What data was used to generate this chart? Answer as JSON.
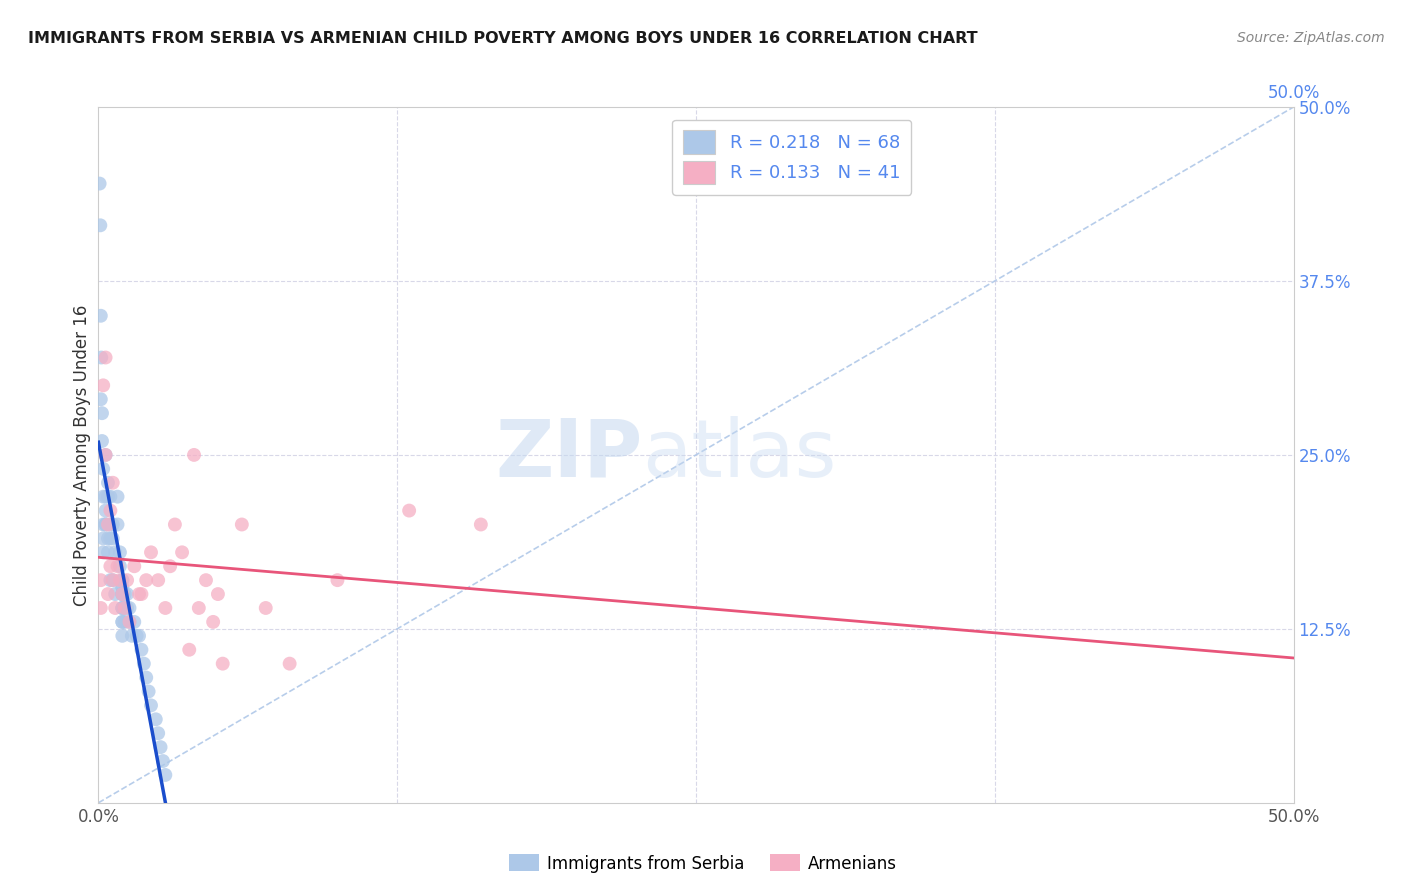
{
  "title": "IMMIGRANTS FROM SERBIA VS ARMENIAN CHILD POVERTY AMONG BOYS UNDER 16 CORRELATION CHART",
  "source": "Source: ZipAtlas.com",
  "ylabel": "Child Poverty Among Boys Under 16",
  "xlim": [
    0,
    0.5
  ],
  "ylim": [
    0,
    0.5
  ],
  "serbia_r": 0.218,
  "serbia_n": 68,
  "armenian_r": 0.133,
  "armenian_n": 41,
  "serbia_color": "#adc8e8",
  "armenian_color": "#f5afc4",
  "serbia_line_color": "#1a4dcc",
  "armenian_line_color": "#e8557a",
  "diagonal_color": "#b0c8e8",
  "tick_label_color": "#5588ee",
  "grid_color": "#d8d8e8",
  "serbia_x": [
    0.0005,
    0.0008,
    0.001,
    0.001,
    0.0012,
    0.0015,
    0.0015,
    0.002,
    0.002,
    0.002,
    0.002,
    0.002,
    0.003,
    0.003,
    0.003,
    0.003,
    0.003,
    0.004,
    0.004,
    0.004,
    0.004,
    0.005,
    0.005,
    0.005,
    0.005,
    0.006,
    0.006,
    0.006,
    0.007,
    0.007,
    0.008,
    0.008,
    0.009,
    0.009,
    0.01,
    0.01,
    0.01,
    0.01,
    0.01,
    0.01,
    0.01,
    0.01,
    0.01,
    0.01,
    0.01,
    0.01,
    0.01,
    0.011,
    0.011,
    0.011,
    0.012,
    0.012,
    0.013,
    0.013,
    0.014,
    0.015,
    0.016,
    0.017,
    0.018,
    0.019,
    0.02,
    0.021,
    0.022,
    0.024,
    0.025,
    0.026,
    0.027,
    0.028
  ],
  "serbia_y": [
    0.445,
    0.415,
    0.35,
    0.29,
    0.32,
    0.28,
    0.26,
    0.24,
    0.22,
    0.2,
    0.19,
    0.18,
    0.25,
    0.22,
    0.21,
    0.2,
    0.2,
    0.23,
    0.22,
    0.19,
    0.18,
    0.22,
    0.2,
    0.19,
    0.16,
    0.2,
    0.19,
    0.16,
    0.18,
    0.15,
    0.22,
    0.2,
    0.18,
    0.17,
    0.16,
    0.16,
    0.155,
    0.155,
    0.15,
    0.15,
    0.15,
    0.14,
    0.14,
    0.14,
    0.13,
    0.13,
    0.12,
    0.15,
    0.14,
    0.13,
    0.15,
    0.14,
    0.14,
    0.13,
    0.12,
    0.13,
    0.12,
    0.12,
    0.11,
    0.1,
    0.09,
    0.08,
    0.07,
    0.06,
    0.05,
    0.04,
    0.03,
    0.02
  ],
  "armenian_x": [
    0.001,
    0.001,
    0.002,
    0.003,
    0.003,
    0.004,
    0.004,
    0.005,
    0.005,
    0.006,
    0.006,
    0.007,
    0.008,
    0.009,
    0.01,
    0.011,
    0.012,
    0.013,
    0.015,
    0.017,
    0.018,
    0.02,
    0.022,
    0.025,
    0.028,
    0.03,
    0.032,
    0.035,
    0.038,
    0.04,
    0.042,
    0.045,
    0.048,
    0.05,
    0.052,
    0.06,
    0.07,
    0.08,
    0.1,
    0.13,
    0.16
  ],
  "armenian_y": [
    0.16,
    0.14,
    0.3,
    0.32,
    0.25,
    0.2,
    0.15,
    0.21,
    0.17,
    0.23,
    0.16,
    0.14,
    0.17,
    0.16,
    0.15,
    0.14,
    0.16,
    0.13,
    0.17,
    0.15,
    0.15,
    0.16,
    0.18,
    0.16,
    0.14,
    0.17,
    0.2,
    0.18,
    0.11,
    0.25,
    0.14,
    0.16,
    0.13,
    0.15,
    0.1,
    0.2,
    0.14,
    0.1,
    0.16,
    0.21,
    0.2
  ],
  "watermark_zip": "ZIP",
  "watermark_atlas": "atlas",
  "legend_label_1": "R = 0.218   N = 68",
  "legend_label_2": "R = 0.133   N = 41",
  "bottom_legend_1": "Immigrants from Serbia",
  "bottom_legend_2": "Armenians"
}
